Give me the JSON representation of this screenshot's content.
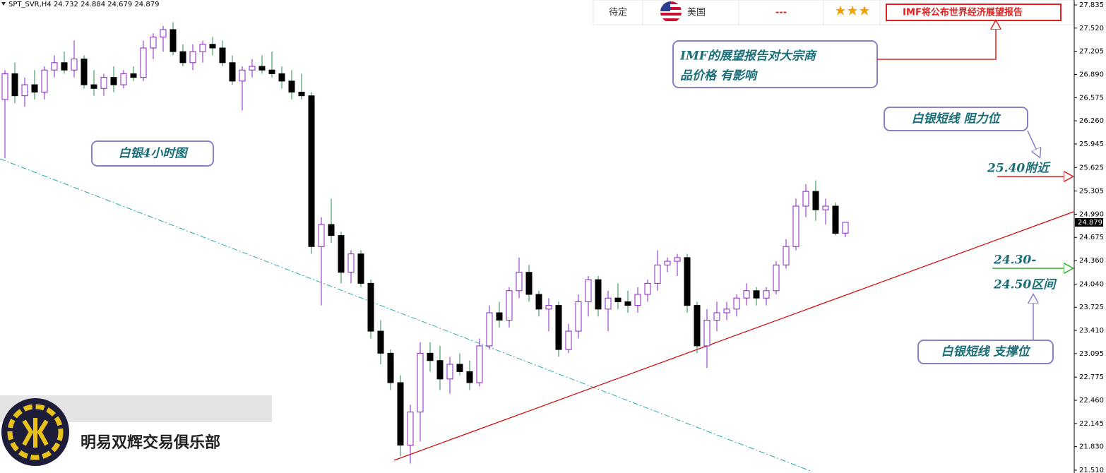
{
  "chart_data": {
    "type": "candlestick",
    "title": "SPT_SVR,H4",
    "open": [
      26.55,
      26.9,
      26.6,
      26.75,
      26.65,
      26.95,
      27.05,
      26.95,
      27.1,
      26.75,
      26.7,
      26.85,
      26.75,
      26.9,
      26.85,
      27.25,
      27.4,
      27.5,
      27.2,
      27.05,
      27.2,
      27.3,
      27.25,
      27.05,
      26.8,
      26.95,
      27.0,
      26.95,
      26.9,
      26.8,
      26.65,
      26.6,
      24.55,
      24.85,
      24.7,
      24.2,
      24.45,
      24.05,
      23.4,
      23.1,
      22.7,
      21.85,
      22.3,
      23.1,
      23.0,
      22.75,
      22.95,
      22.85,
      22.7,
      23.2,
      23.65,
      23.55,
      23.95,
      24.2,
      23.9,
      23.7,
      23.75,
      23.15,
      23.4,
      23.8,
      24.1,
      23.7,
      23.85,
      23.8,
      23.75,
      23.9,
      24.05,
      24.3,
      24.35,
      24.4,
      23.75,
      23.2,
      23.55,
      23.65,
      23.7,
      23.85,
      23.95,
      23.85,
      23.95,
      24.3,
      24.55,
      25.1,
      25.3,
      25.05,
      25.1,
      24.732
    ],
    "high": [
      26.95,
      27.05,
      26.85,
      26.95,
      27.0,
      27.15,
      27.2,
      27.35,
      27.15,
      26.95,
      26.9,
      27.0,
      26.95,
      27.0,
      27.35,
      27.45,
      27.55,
      27.6,
      27.3,
      27.3,
      27.35,
      27.4,
      27.35,
      27.15,
      27.0,
      27.1,
      27.15,
      27.2,
      27.0,
      26.95,
      26.9,
      26.65,
      24.95,
      25.2,
      24.75,
      24.5,
      24.5,
      24.1,
      23.55,
      23.15,
      22.8,
      22.4,
      23.25,
      23.25,
      23.2,
      23.05,
      23.1,
      23.0,
      23.3,
      23.75,
      23.8,
      24.0,
      24.4,
      24.3,
      23.95,
      23.85,
      23.8,
      23.5,
      23.9,
      24.15,
      24.15,
      23.95,
      24.05,
      23.95,
      24.0,
      24.1,
      24.5,
      24.4,
      24.45,
      24.45,
      23.8,
      23.7,
      23.8,
      23.8,
      23.9,
      24.05,
      24.0,
      24.0,
      24.35,
      24.65,
      25.2,
      25.4,
      25.45,
      25.2,
      25.15,
      24.884
    ],
    "low": [
      25.75,
      26.5,
      26.45,
      26.55,
      26.55,
      26.85,
      26.9,
      26.85,
      26.7,
      26.6,
      26.6,
      26.65,
      26.7,
      26.8,
      26.8,
      27.1,
      27.2,
      27.15,
      27.0,
      26.95,
      27.05,
      27.15,
      27.0,
      26.75,
      26.4,
      26.85,
      26.9,
      26.85,
      26.7,
      26.55,
      26.55,
      24.45,
      23.75,
      24.6,
      24.05,
      24.05,
      24.0,
      23.3,
      22.95,
      22.6,
      21.7,
      21.6,
      21.9,
      22.85,
      22.6,
      22.55,
      22.8,
      22.6,
      22.65,
      23.15,
      23.45,
      23.45,
      23.85,
      23.8,
      23.6,
      23.4,
      23.05,
      23.1,
      23.3,
      23.6,
      23.6,
      23.4,
      23.7,
      23.65,
      23.65,
      23.8,
      23.95,
      24.2,
      24.15,
      23.65,
      23.1,
      22.9,
      23.4,
      23.55,
      23.6,
      23.75,
      23.75,
      23.75,
      23.9,
      24.25,
      24.5,
      24.95,
      24.9,
      24.85,
      24.7,
      24.679
    ],
    "close": [
      26.9,
      26.6,
      26.75,
      26.65,
      26.95,
      27.05,
      26.95,
      27.1,
      26.75,
      26.7,
      26.85,
      26.75,
      26.9,
      26.85,
      27.25,
      27.4,
      27.5,
      27.2,
      27.05,
      27.2,
      27.3,
      27.25,
      27.05,
      26.8,
      26.95,
      27.0,
      26.95,
      26.9,
      26.8,
      26.65,
      26.6,
      24.55,
      24.85,
      24.7,
      24.2,
      24.45,
      24.05,
      23.4,
      23.1,
      22.7,
      21.85,
      22.3,
      23.1,
      23.0,
      22.75,
      22.95,
      22.85,
      22.7,
      23.2,
      23.65,
      23.55,
      23.95,
      24.2,
      23.9,
      23.7,
      23.75,
      23.15,
      23.4,
      23.8,
      24.1,
      23.7,
      23.85,
      23.8,
      23.75,
      23.9,
      24.05,
      24.3,
      24.35,
      24.4,
      23.75,
      23.2,
      23.55,
      23.65,
      23.7,
      23.85,
      23.95,
      23.85,
      23.95,
      24.3,
      24.55,
      25.1,
      25.3,
      25.05,
      25.1,
      24.73,
      24.879
    ],
    "up_color": "#8b1fc8",
    "down_color": "#000000",
    "down_wick_color": "#1e8c4a",
    "ylim": [
      21.51,
      27.835
    ],
    "yticks": [
      27.835,
      {
        "value": 27.52,
        "label": "27.520"
      },
      27.205,
      {
        "value": 26.89,
        "label": "26.890"
      },
      26.575,
      {
        "value": 26.26,
        "label": "26.260"
      },
      25.945,
      25.625,
      25.305,
      {
        "value": 24.99,
        "label": "24.990"
      },
      24.675,
      {
        "value": 24.36,
        "label": "24.360"
      },
      {
        "value": 24.04,
        "label": "24.040"
      },
      23.725,
      {
        "value": 23.41,
        "label": "23.410"
      },
      23.095,
      22.775,
      {
        "value": 22.46,
        "label": "22.460"
      },
      22.145,
      {
        "value": 21.83,
        "label": "21.830"
      },
      {
        "value": 21.51,
        "label": "21.510"
      }
    ],
    "annotations": {
      "chart_label": "白银4小时图",
      "imf_line1": "IMF的展望报告对大宗商",
      "imf_line2": "品价格 有影响",
      "resistance": "白银短线 阻力位",
      "resistance_level": "25.40附近",
      "support_level_1": "24.30-",
      "support_level_2": "24.50区间",
      "support": "白银短线 支撑位"
    }
  },
  "calendar": {
    "status": "待定",
    "country": "美国",
    "value": "---",
    "event": "IMF将公布世界经济展望报告"
  },
  "logo": {
    "name": "明易双辉交易俱乐部"
  }
}
